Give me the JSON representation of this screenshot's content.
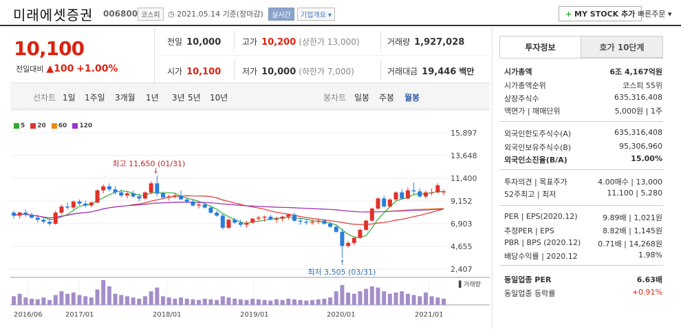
{
  "header": {
    "title": "미래에셋증권",
    "code": "006800",
    "market": "코스피",
    "date": "2021.05.14 기준(장마감)",
    "realtime": "실시간",
    "company_info": "기업개요",
    "my_stock": "MY STOCK 추가",
    "quick_order": "빠른주문"
  },
  "price": {
    "current": "10,100",
    "change_label": "전일대비",
    "change_arrow": "▲",
    "change": "100",
    "change_pct": "+1.00%"
  },
  "stats": [
    {
      "label": "전일",
      "value": "10,000",
      "sub": ""
    },
    {
      "label": "고가",
      "value": "10,200",
      "sub": "(상한가 13,000)",
      "red": true
    },
    {
      "label": "거래량",
      "value": "1,927,028",
      "sub": ""
    },
    {
      "label": "시가",
      "value": "10,100",
      "sub": "",
      "red": true
    },
    {
      "label": "저가",
      "value": "10,000",
      "sub": "(하한가 7,000)"
    },
    {
      "label": "거래대금",
      "value": "19,446",
      "sub": "백만"
    }
  ],
  "toolbar": {
    "line_label": "선차트",
    "periods": [
      "1일",
      "1주일",
      "3개월",
      "1년",
      "3년",
      "5년",
      "10년"
    ],
    "candle_label": "봉차트",
    "candle": [
      "일봉",
      "주봉",
      "월봉"
    ],
    "selected": "월봉"
  },
  "chart_data": {
    "type": "candlestick",
    "x_ticks": [
      "2016/06",
      "2017/01",
      "2018/01",
      "2019/01",
      "2020/01",
      "2021/01"
    ],
    "y_ticks": [
      15897,
      13648,
      11400,
      9152,
      6903,
      4655,
      2407
    ],
    "ylim": [
      2407,
      15897
    ],
    "legend": [
      "5",
      "20",
      "60",
      "120"
    ],
    "legend_colors": [
      "#3a3",
      "#d33",
      "#e88a1b",
      "#93c"
    ],
    "annotation_high": "최고 11,650 (01/31)",
    "annotation_low": "최저 3,505 (03/31)",
    "volume_label": "거래량",
    "candles": [
      [
        8000,
        8200,
        7400,
        7700
      ],
      [
        7700,
        8100,
        7400,
        8000
      ],
      [
        8000,
        8300,
        7600,
        7800
      ],
      [
        7800,
        8000,
        7400,
        7500
      ],
      [
        7500,
        7800,
        7000,
        7300
      ],
      [
        7300,
        7600,
        6900,
        7100
      ],
      [
        7100,
        7400,
        6700,
        6900
      ],
      [
        6900,
        8200,
        6800,
        8000
      ],
      [
        8000,
        8800,
        7800,
        8600
      ],
      [
        8600,
        9000,
        8300,
        8500
      ],
      [
        8500,
        9200,
        8300,
        9100
      ],
      [
        9100,
        9300,
        8700,
        8900
      ],
      [
        8900,
        9200,
        8500,
        8700
      ],
      [
        8700,
        9100,
        8500,
        9000
      ],
      [
        9000,
        10300,
        8900,
        10200
      ],
      [
        10200,
        10800,
        9900,
        10600
      ],
      [
        10600,
        10900,
        10100,
        10300
      ],
      [
        10300,
        10600,
        9800,
        10000
      ],
      [
        10000,
        10300,
        9500,
        9700
      ],
      [
        9700,
        10100,
        9400,
        9900
      ],
      [
        9900,
        10200,
        9500,
        9600
      ],
      [
        9600,
        9900,
        9100,
        9400
      ],
      [
        9400,
        10100,
        9300,
        10000
      ],
      [
        10000,
        11100,
        9800,
        10900
      ],
      [
        10900,
        11650,
        9600,
        9900
      ],
      [
        9900,
        10100,
        9300,
        9500
      ],
      [
        9500,
        9800,
        9200,
        9600
      ],
      [
        9600,
        9900,
        9400,
        9700
      ],
      [
        9700,
        10200,
        9400,
        9300
      ],
      [
        9300,
        9500,
        8900,
        9100
      ],
      [
        9100,
        9300,
        8600,
        8700
      ],
      [
        8700,
        9000,
        8400,
        8800
      ],
      [
        8800,
        9000,
        8400,
        8500
      ],
      [
        8500,
        8700,
        7900,
        8000
      ],
      [
        8000,
        8200,
        7600,
        7700
      ],
      [
        7700,
        7900,
        6300,
        6500
      ],
      [
        6500,
        7400,
        6400,
        7300
      ],
      [
        7300,
        7500,
        6900,
        7000
      ],
      [
        7000,
        7300,
        6600,
        6800
      ],
      [
        6800,
        7200,
        6500,
        7000
      ],
      [
        7000,
        7500,
        6900,
        7400
      ],
      [
        7400,
        7700,
        7200,
        7500
      ],
      [
        7500,
        7700,
        7100,
        7600
      ],
      [
        7600,
        7800,
        7200,
        7300
      ],
      [
        7300,
        7600,
        7000,
        7400
      ],
      [
        7400,
        7700,
        7100,
        7600
      ],
      [
        7600,
        7900,
        7300,
        7800
      ],
      [
        7800,
        8000,
        7100,
        7200
      ],
      [
        7200,
        7500,
        6800,
        7100
      ],
      [
        7100,
        7300,
        6800,
        7000
      ],
      [
        7000,
        7300,
        6800,
        7100
      ],
      [
        7100,
        7400,
        6900,
        7200
      ],
      [
        7200,
        7300,
        6800,
        6900
      ],
      [
        6900,
        7100,
        6500,
        6600
      ],
      [
        6600,
        6800,
        6000,
        6100
      ],
      [
        6100,
        6400,
        3505,
        4700
      ],
      [
        4700,
        5200,
        4500,
        5000
      ],
      [
        5000,
        5600,
        4800,
        5500
      ],
      [
        5500,
        6400,
        5400,
        6300
      ],
      [
        6300,
        7300,
        6200,
        7200
      ],
      [
        7200,
        8500,
        7100,
        8400
      ],
      [
        8400,
        9500,
        8300,
        9400
      ],
      [
        9400,
        9700,
        8500,
        8600
      ],
      [
        8600,
        9400,
        8500,
        9300
      ],
      [
        9300,
        10100,
        9200,
        10000
      ],
      [
        10000,
        10300,
        9300,
        9400
      ],
      [
        9400,
        10500,
        9300,
        10200
      ],
      [
        10200,
        11000,
        9800,
        10100
      ],
      [
        10100,
        10400,
        9500,
        9600
      ],
      [
        9600,
        10200,
        9400,
        10000
      ],
      [
        10000,
        10400,
        9700,
        10000
      ],
      [
        10000,
        10900,
        9900,
        10700
      ],
      [
        10000,
        10300,
        9700,
        10100
      ]
    ],
    "volumes": [
      14,
      18,
      12,
      10,
      9,
      12,
      8,
      16,
      22,
      18,
      20,
      16,
      14,
      12,
      25,
      40,
      30,
      18,
      16,
      14,
      12,
      10,
      14,
      22,
      28,
      14,
      12,
      10,
      12,
      10,
      9,
      8,
      10,
      9,
      8,
      14,
      12,
      10,
      9,
      8,
      10,
      9,
      8,
      7,
      9,
      8,
      10,
      9,
      8,
      7,
      8,
      9,
      10,
      12,
      22,
      32,
      20,
      18,
      22,
      26,
      30,
      28,
      22,
      18,
      20,
      22,
      18,
      16,
      14,
      20,
      14,
      12,
      10
    ]
  },
  "invest": {
    "tabs": [
      "투자정보",
      "호가 10단계"
    ],
    "rows": [
      {
        "k": "시가총액",
        "v": "6조 4,167억원",
        "bold": true
      },
      {
        "k": "시가총액순위",
        "v": "코스피 55위"
      },
      {
        "k": "상장주식수",
        "v": "635,316,408"
      },
      {
        "k": "액면가 | 매매단위",
        "v": "5,000원 | 1주"
      },
      {
        "k": "외국인한도주식수(A)",
        "v": "635,316,408"
      },
      {
        "k": "외국인보유주식수(B)",
        "v": "95,306,960"
      },
      {
        "k": "외국인소진율(B/A)",
        "v": "15.00%",
        "bold": true
      },
      {
        "k": "투자의견 | 목표주가",
        "v": "4.00매수 | 13,000"
      },
      {
        "k": "52주최고 | 최저",
        "v": "11,100 | 5,280"
      },
      {
        "k": "PER | EPS(2020.12)",
        "v": "9.89배 | 1,021원"
      },
      {
        "k": "추정PER | EPS",
        "v": "8.82배 | 1,145원"
      },
      {
        "k": "PBR | BPS (2020.12)",
        "v": "0.71배 | 14,268원"
      },
      {
        "k": "배당수익률 | 2020.12",
        "v": "1.98%"
      },
      {
        "k": "동일업종 PER",
        "v": "6.63배",
        "bold": true
      },
      {
        "k": "동일업종 등락률",
        "v": "+0.91%",
        "red": true
      }
    ]
  }
}
